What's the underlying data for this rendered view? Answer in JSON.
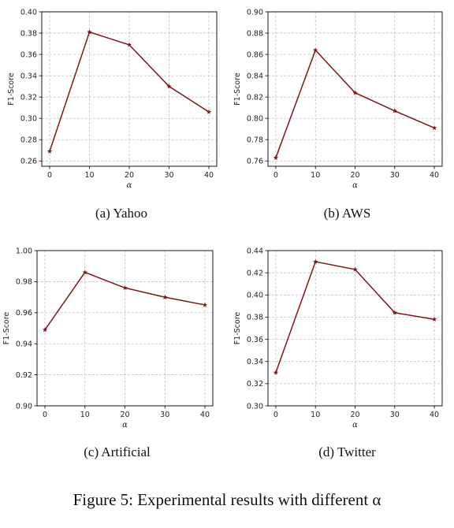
{
  "figure_caption": "Figure 5: Experimental results with different α",
  "chart_data": [
    {
      "type": "line",
      "caption": "(a)  Yahoo",
      "xlabel": "α",
      "ylabel": "F1-Score",
      "x": [
        0,
        10,
        20,
        30,
        40
      ],
      "y": [
        0.269,
        0.381,
        0.369,
        0.33,
        0.306
      ],
      "xticks": [
        0,
        10,
        20,
        30,
        40
      ],
      "yticks": [
        0.26,
        0.28,
        0.3,
        0.32,
        0.34,
        0.36,
        0.38,
        0.4
      ],
      "ylim": [
        0.255,
        0.4
      ],
      "grid": true,
      "color": "#7b1717",
      "marker": "star"
    },
    {
      "type": "line",
      "caption": "(b)  AWS",
      "xlabel": "α",
      "ylabel": "F1-Score",
      "x": [
        0,
        10,
        20,
        30,
        40
      ],
      "y": [
        0.763,
        0.864,
        0.824,
        0.807,
        0.791
      ],
      "xticks": [
        0,
        10,
        20,
        30,
        40
      ],
      "yticks": [
        0.76,
        0.78,
        0.8,
        0.82,
        0.84,
        0.86,
        0.88,
        0.9
      ],
      "ylim": [
        0.755,
        0.9
      ],
      "grid": true,
      "color": "#7b1717",
      "marker": "star"
    },
    {
      "type": "line",
      "caption": "(c)  Artificial",
      "xlabel": "α",
      "ylabel": "F1-Score",
      "x": [
        0,
        10,
        20,
        30,
        40
      ],
      "y": [
        0.949,
        0.986,
        0.976,
        0.97,
        0.965
      ],
      "xticks": [
        0,
        10,
        20,
        30,
        40
      ],
      "yticks": [
        0.9,
        0.92,
        0.94,
        0.96,
        0.98,
        1.0
      ],
      "ylim": [
        0.9,
        1.0
      ],
      "grid": true,
      "color": "#7b1717",
      "marker": "star"
    },
    {
      "type": "line",
      "caption": "(d)  Twitter",
      "xlabel": "α",
      "ylabel": "F1-Score",
      "x": [
        0,
        10,
        20,
        30,
        40
      ],
      "y": [
        0.33,
        0.43,
        0.423,
        0.384,
        0.378
      ],
      "xticks": [
        0,
        10,
        20,
        30,
        40
      ],
      "yticks": [
        0.3,
        0.32,
        0.34,
        0.36,
        0.38,
        0.4,
        0.42,
        0.44
      ],
      "ylim": [
        0.3,
        0.44
      ],
      "grid": true,
      "color": "#7b1717",
      "marker": "star"
    }
  ]
}
